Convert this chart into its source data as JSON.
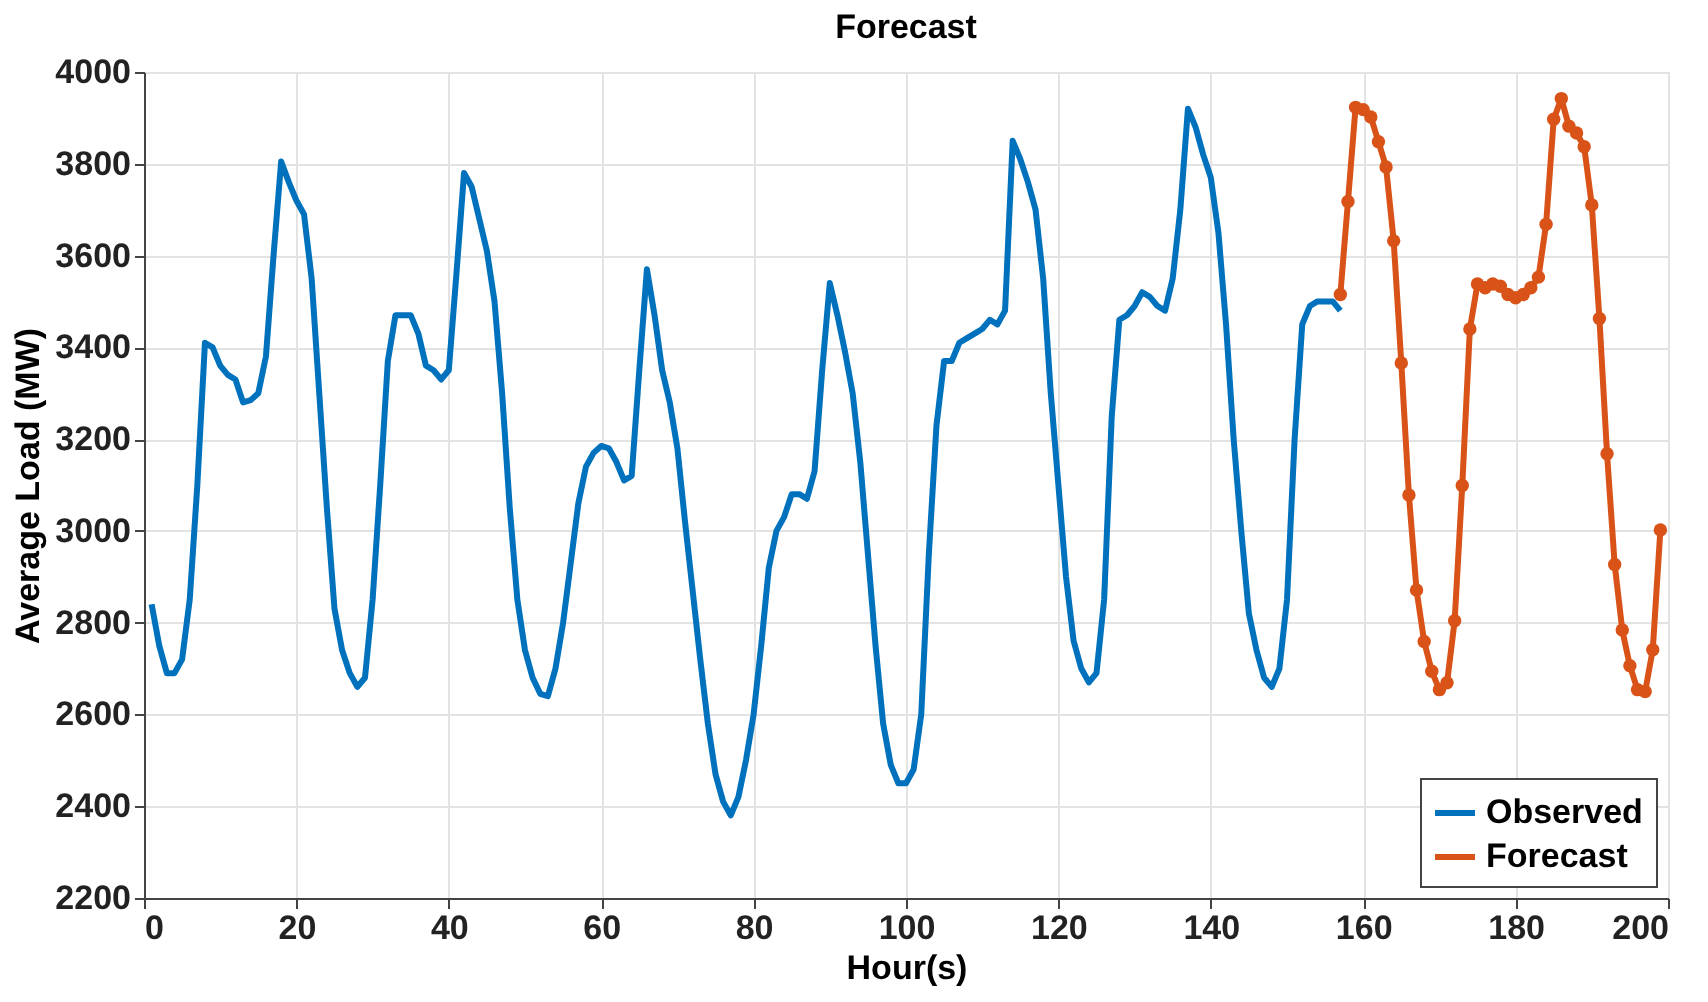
{
  "chart_data": {
    "type": "line",
    "title": "Forecast",
    "xlabel": "Hour(s)",
    "ylabel": "Average Load (MW)",
    "xlim": [
      0,
      200
    ],
    "xticks": [
      0,
      20,
      40,
      60,
      80,
      100,
      120,
      140,
      160,
      180,
      200
    ],
    "ylim": [
      2200,
      4000
    ],
    "yticks": [
      2200,
      2400,
      2600,
      2800,
      3000,
      3200,
      3400,
      3600,
      3800,
      4000
    ],
    "grid": true,
    "legend": "bottom right",
    "line_style": "solid",
    "series": [
      {
        "name": "Observed",
        "color": "#0072bd",
        "marker": "none",
        "x": [
          1,
          2,
          3,
          4,
          5,
          6,
          7,
          8,
          9,
          10,
          11,
          12,
          13,
          14,
          15,
          16,
          17,
          18,
          19,
          20,
          21,
          22,
          23,
          24,
          25,
          26,
          27,
          28,
          29,
          30,
          31,
          32,
          33,
          34,
          35,
          36,
          37,
          38,
          39,
          40,
          41,
          42,
          43,
          44,
          45,
          46,
          47,
          48,
          49,
          50,
          51,
          52,
          53,
          54,
          55,
          56,
          57,
          58,
          59,
          60,
          61,
          62,
          63,
          64,
          65,
          66,
          67,
          68,
          69,
          70,
          71,
          72,
          73,
          74,
          75,
          76,
          77,
          78,
          79,
          80,
          81,
          82,
          83,
          84,
          85,
          86,
          87,
          88,
          89,
          90,
          91,
          92,
          93,
          94,
          95,
          96,
          97,
          98,
          99,
          100,
          101,
          102,
          103,
          104,
          105,
          106,
          107,
          108,
          109,
          110,
          111,
          112,
          113,
          114,
          115,
          116,
          117,
          118,
          119,
          120,
          121,
          122,
          123,
          124,
          125,
          126,
          127,
          128,
          129,
          130,
          131,
          132,
          133,
          134,
          135,
          136,
          137,
          138,
          139,
          140,
          141,
          142,
          143,
          144,
          145,
          146,
          147,
          148,
          149,
          150,
          151,
          152,
          153,
          154,
          155,
          156,
          157
        ],
        "values": [
          2840,
          2750,
          2690,
          2690,
          2720,
          2850,
          3100,
          3410,
          3400,
          3360,
          3340,
          3330,
          3280,
          3285,
          3300,
          3380,
          3600,
          3805,
          3760,
          3720,
          3690,
          3550,
          3300,
          3050,
          2830,
          2740,
          2690,
          2660,
          2680,
          2850,
          3100,
          3370,
          3470,
          3470,
          3470,
          3430,
          3360,
          3350,
          3330,
          3350,
          3560,
          3780,
          3750,
          3680,
          3610,
          3500,
          3300,
          3050,
          2850,
          2740,
          2680,
          2645,
          2640,
          2700,
          2800,
          2930,
          3060,
          3140,
          3170,
          3185,
          3180,
          3150,
          3110,
          3120,
          3350,
          3570,
          3470,
          3350,
          3280,
          3180,
          3020,
          2870,
          2720,
          2580,
          2470,
          2410,
          2380,
          2420,
          2500,
          2600,
          2750,
          2920,
          3000,
          3030,
          3080,
          3080,
          3070,
          3130,
          3350,
          3540,
          3470,
          3390,
          3300,
          3150,
          2950,
          2750,
          2580,
          2490,
          2450,
          2450,
          2480,
          2600,
          2950,
          3230,
          3370,
          3370,
          3410,
          3420,
          3430,
          3440,
          3460,
          3450,
          3480,
          3850,
          3810,
          3760,
          3700,
          3550,
          3300,
          3100,
          2900,
          2760,
          2700,
          2670,
          2690,
          2850,
          3250,
          3460,
          3470,
          3490,
          3520,
          3510,
          3490,
          3480,
          3550,
          3700,
          3920,
          3880,
          3820,
          3770,
          3650,
          3450,
          3200,
          3000,
          2820,
          2740,
          2680,
          2660,
          2700,
          2850,
          3200,
          3450,
          3490,
          3500,
          3500,
          3500,
          3480
        ]
      },
      {
        "name": "Forecast",
        "color": "#d95319",
        "marker": "circle",
        "x": [
          157,
          158,
          159,
          160,
          161,
          162,
          163,
          164,
          165,
          166,
          167,
          168,
          169,
          170,
          171,
          172,
          173,
          174,
          175,
          176,
          177,
          178,
          179,
          180,
          181,
          182,
          183,
          184,
          185,
          186,
          187,
          188,
          189,
          190,
          191,
          192,
          193,
          194,
          195,
          196,
          197,
          198,
          199
        ],
        "values": [
          3515,
          3718,
          3923,
          3918,
          3902,
          3848,
          3793,
          3632,
          3366,
          3078,
          2871,
          2759,
          2694,
          2654,
          2669,
          2804,
          3099,
          3440,
          3538,
          3530,
          3538,
          3533,
          3515,
          3508,
          3515,
          3530,
          3553,
          3668,
          3897,
          3942,
          3882,
          3867,
          3837,
          3710,
          3463,
          3168,
          2927,
          2784,
          2706,
          2654,
          2650,
          2741,
          3002
        ]
      }
    ]
  }
}
